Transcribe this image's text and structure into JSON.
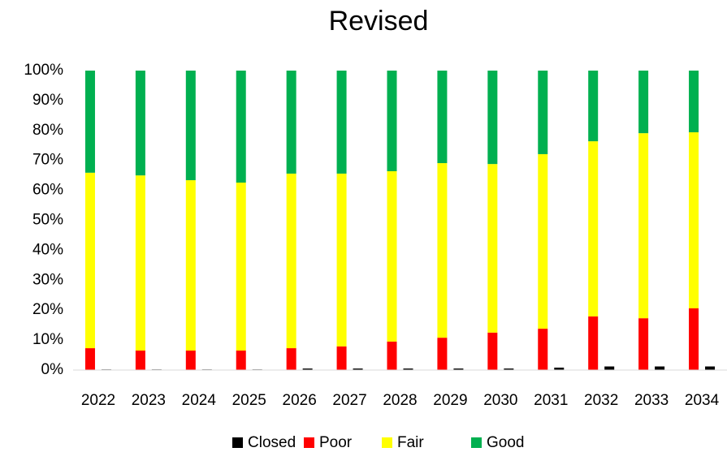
{
  "chart_data": {
    "type": "bar",
    "title": "Revised",
    "stacked": true,
    "categories": [
      "2022",
      "2023",
      "2024",
      "2025",
      "2026",
      "2027",
      "2028",
      "2029",
      "2030",
      "2031",
      "2032",
      "2033",
      "2034"
    ],
    "series": [
      {
        "name": "Closed",
        "color": "#000000",
        "stack": false,
        "values": [
          0.2,
          0.2,
          0.2,
          0.2,
          0.5,
          0.5,
          0.5,
          0.5,
          0.5,
          0.8,
          1.2,
          1.2,
          1.2
        ]
      },
      {
        "name": "Poor",
        "color": "#ff0000",
        "stack": true,
        "values": [
          7.3,
          6.5,
          6.5,
          6.5,
          7.3,
          7.9,
          9.5,
          10.8,
          12.5,
          13.8,
          17.9,
          17.3,
          20.6
        ]
      },
      {
        "name": "Fair",
        "color": "#ffff00",
        "stack": true,
        "values": [
          58.6,
          58.5,
          56.9,
          56.1,
          58.3,
          57.7,
          56.9,
          58.3,
          56.3,
          58.3,
          58.5,
          61.8,
          58.8
        ]
      },
      {
        "name": "Good",
        "color": "#00b050",
        "stack": true,
        "values": [
          34.1,
          35.0,
          36.6,
          37.4,
          34.4,
          34.4,
          33.6,
          30.9,
          31.2,
          27.9,
          23.6,
          20.9,
          20.6
        ]
      }
    ],
    "ylim": [
      0,
      100
    ],
    "yticks": [
      {
        "value": 0,
        "label": "0%"
      },
      {
        "value": 10,
        "label": "10%"
      },
      {
        "value": 20,
        "label": "20%"
      },
      {
        "value": 30,
        "label": "30%"
      },
      {
        "value": 40,
        "label": "40%"
      },
      {
        "value": 50,
        "label": "50%"
      },
      {
        "value": 60,
        "label": "60%"
      },
      {
        "value": 70,
        "label": "70%"
      },
      {
        "value": 80,
        "label": "80%"
      },
      {
        "value": 90,
        "label": "90%"
      },
      {
        "value": 100,
        "label": "100%"
      }
    ],
    "grid": false,
    "legend": "bottom"
  }
}
